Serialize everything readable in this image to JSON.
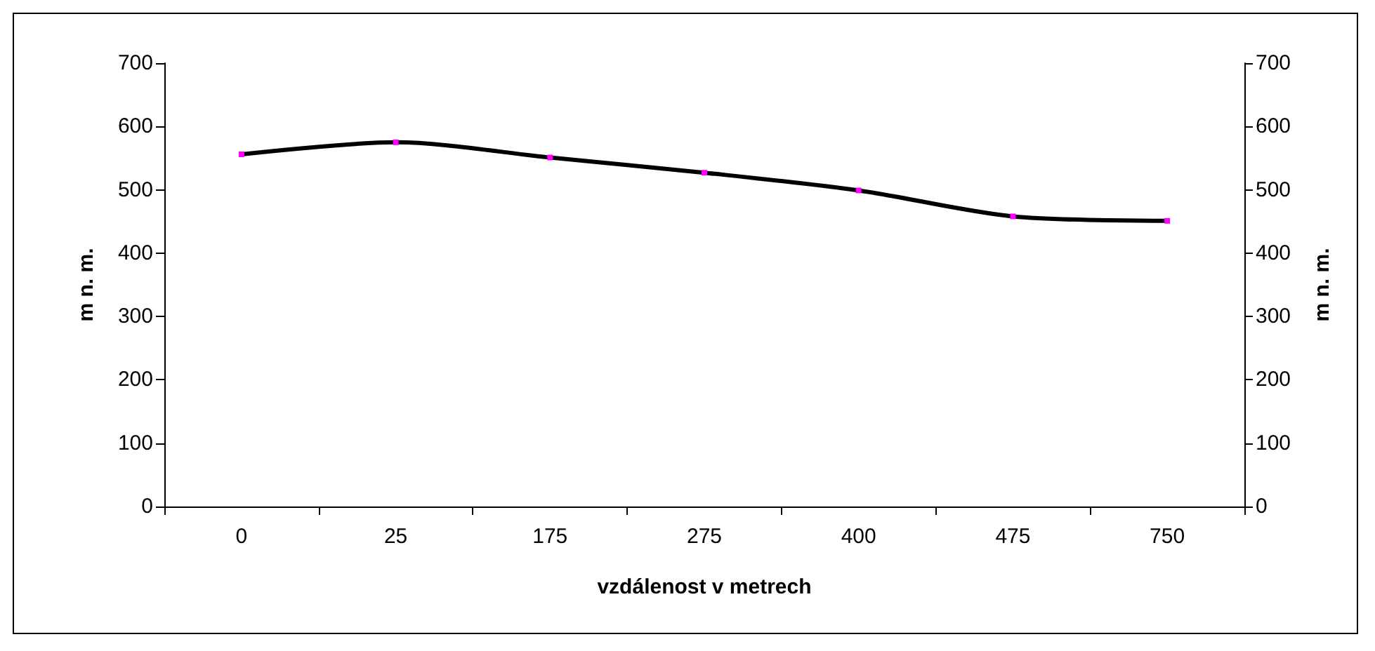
{
  "chart_data": {
    "type": "line",
    "xlabel": "vzdálenost v metrech",
    "ylabel": "m n. m.",
    "y2label": "m n. m.",
    "categories": [
      "0",
      "25",
      "175",
      "275",
      "400",
      "475",
      "750"
    ],
    "series": [
      {
        "color": "#000000",
        "values": [
          556,
          575,
          551,
          527,
          499,
          458,
          451
        ]
      }
    ],
    "ylim": [
      0,
      700
    ],
    "yticks": [
      0,
      100,
      200,
      300,
      400,
      500,
      600,
      700
    ],
    "y2lim": [
      0,
      700
    ],
    "y2ticks": [
      0,
      100,
      200,
      300,
      400,
      500,
      600,
      700
    ],
    "grid": false,
    "marker": "square",
    "line_style": "solid"
  }
}
